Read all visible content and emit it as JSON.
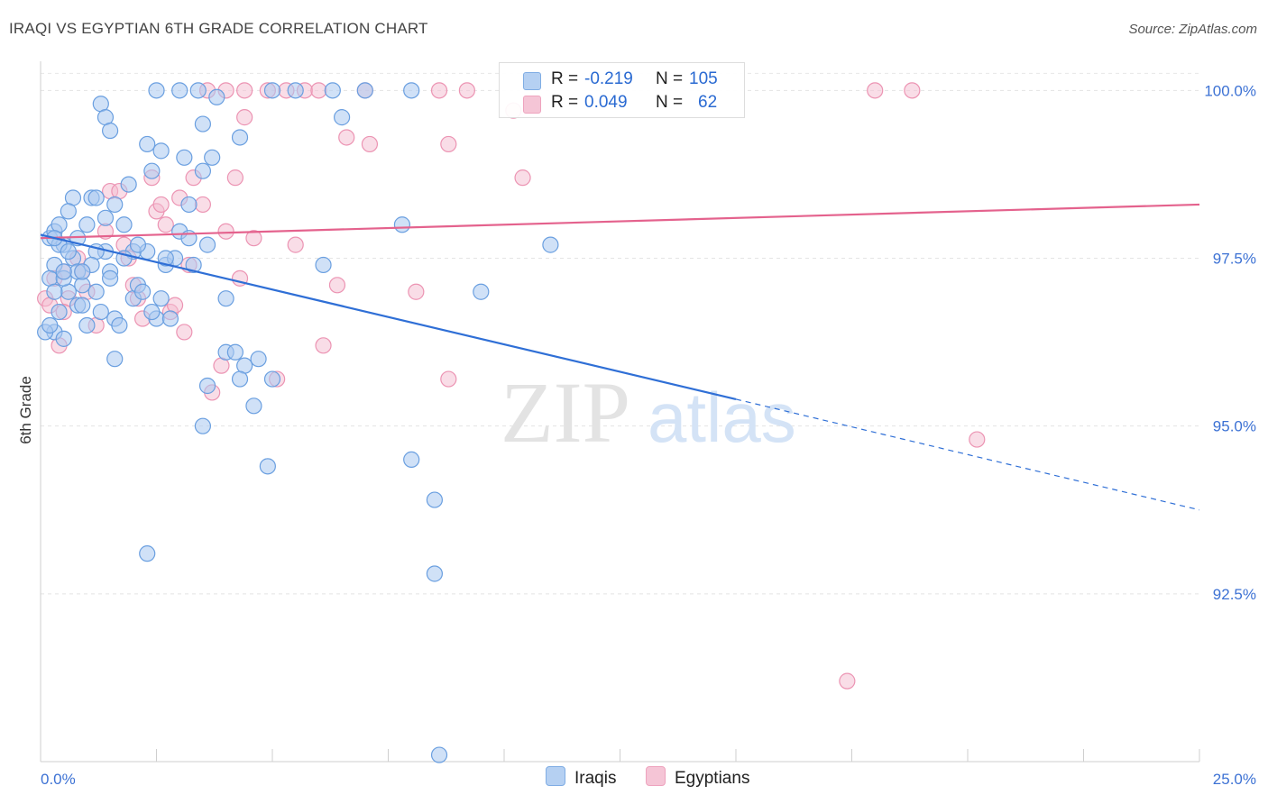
{
  "title": "IRAQI VS EGYPTIAN 6TH GRADE CORRELATION CHART",
  "source": "Source: ZipAtlas.com",
  "watermark": {
    "zip": "ZIP",
    "atlas": "atlas"
  },
  "colors": {
    "iraqi_fill": "#a9c8f0",
    "iraqi_stroke": "#6a9fe0",
    "iraqi_line": "#2f6fd6",
    "egypt_fill": "#f4bcd0",
    "egypt_stroke": "#ec94b3",
    "egypt_line": "#e4628d",
    "axis_text": "#3d72d4"
  },
  "legend": {
    "iraqi": {
      "r_label": "R =",
      "r_value": "-0.219",
      "n_label": "N =",
      "n_value": "105"
    },
    "egyptian": {
      "r_label": "R =",
      "r_value": "0.049",
      "n_label": "N =",
      "n_value": "62"
    }
  },
  "bottom_legend": {
    "iraqi": "Iraqis",
    "egyptian": "Egyptians"
  },
  "chart_data": {
    "type": "scatter",
    "title": "IRAQI VS EGYPTIAN 6TH GRADE CORRELATION CHART",
    "xlabel": "",
    "ylabel": "6th Grade",
    "xlim": [
      0,
      25
    ],
    "ylim": [
      90.0,
      100.3
    ],
    "x_tick_labels": [
      "0.0%",
      "25.0%"
    ],
    "y_ticks": [
      92.5,
      95.0,
      97.5,
      100.0
    ],
    "y_tick_labels": [
      "92.5%",
      "95.0%",
      "97.5%",
      "100.0%"
    ],
    "grid": true,
    "series": [
      {
        "name": "Iraqis",
        "trend": {
          "x0": 0.0,
          "y0": 97.85,
          "x1": 15.0,
          "y1": 95.4,
          "dash_to_x": 25.0,
          "dash_to_y": 93.75
        },
        "points": [
          [
            0.2,
            97.8
          ],
          [
            0.3,
            97.9
          ],
          [
            0.4,
            98.0
          ],
          [
            0.5,
            97.7
          ],
          [
            0.3,
            97.4
          ],
          [
            0.2,
            97.2
          ],
          [
            0.6,
            97.0
          ],
          [
            0.4,
            96.7
          ],
          [
            0.3,
            96.4
          ],
          [
            0.5,
            97.2
          ],
          [
            0.7,
            97.5
          ],
          [
            0.8,
            97.3
          ],
          [
            0.9,
            97.1
          ],
          [
            1.0,
            98.0
          ],
          [
            1.1,
            98.4
          ],
          [
            1.2,
            98.4
          ],
          [
            0.7,
            98.4
          ],
          [
            0.6,
            98.2
          ],
          [
            0.8,
            96.8
          ],
          [
            1.0,
            96.5
          ],
          [
            1.3,
            96.7
          ],
          [
            1.4,
            97.6
          ],
          [
            1.5,
            97.3
          ],
          [
            1.6,
            96.6
          ],
          [
            1.7,
            96.5
          ],
          [
            2.0,
            96.9
          ],
          [
            2.1,
            97.1
          ],
          [
            2.2,
            97.0
          ],
          [
            2.5,
            96.6
          ],
          [
            2.6,
            96.9
          ],
          [
            2.7,
            97.4
          ],
          [
            2.3,
            97.6
          ],
          [
            2.0,
            97.6
          ],
          [
            1.8,
            98.0
          ],
          [
            1.6,
            98.3
          ],
          [
            1.4,
            98.1
          ],
          [
            1.2,
            97.6
          ],
          [
            1.9,
            98.6
          ],
          [
            2.4,
            98.8
          ],
          [
            2.3,
            99.2
          ],
          [
            2.6,
            99.1
          ],
          [
            3.1,
            99.0
          ],
          [
            3.5,
            98.8
          ],
          [
            3.7,
            99.0
          ],
          [
            3.5,
            99.5
          ],
          [
            3.8,
            99.9
          ],
          [
            2.5,
            100.0
          ],
          [
            3.0,
            100.0
          ],
          [
            3.4,
            100.0
          ],
          [
            4.3,
            99.3
          ],
          [
            5.0,
            100.0
          ],
          [
            5.5,
            100.0
          ],
          [
            6.3,
            100.0
          ],
          [
            6.5,
            99.6
          ],
          [
            7.0,
            100.0
          ],
          [
            8.0,
            100.0
          ],
          [
            7.8,
            98.0
          ],
          [
            3.2,
            98.3
          ],
          [
            3.0,
            97.9
          ],
          [
            3.2,
            97.8
          ],
          [
            2.8,
            96.6
          ],
          [
            3.3,
            97.4
          ],
          [
            4.0,
            96.1
          ],
          [
            4.4,
            95.9
          ],
          [
            4.7,
            96.0
          ],
          [
            4.3,
            95.7
          ],
          [
            5.0,
            95.7
          ],
          [
            4.6,
            95.3
          ],
          [
            3.5,
            95.0
          ],
          [
            3.6,
            95.6
          ],
          [
            4.0,
            96.9
          ],
          [
            6.1,
            97.4
          ],
          [
            8.0,
            94.5
          ],
          [
            8.5,
            93.9
          ],
          [
            4.9,
            94.4
          ],
          [
            9.5,
            97.0
          ],
          [
            11.0,
            97.7
          ],
          [
            2.3,
            93.1
          ],
          [
            8.5,
            92.8
          ],
          [
            8.6,
            90.1
          ],
          [
            1.3,
            99.8
          ],
          [
            1.4,
            99.6
          ],
          [
            1.5,
            99.4
          ],
          [
            0.4,
            97.7
          ],
          [
            0.5,
            96.3
          ],
          [
            0.5,
            97.3
          ],
          [
            0.8,
            97.8
          ],
          [
            1.1,
            97.4
          ],
          [
            0.3,
            97.8
          ],
          [
            0.9,
            96.8
          ],
          [
            1.2,
            97.0
          ],
          [
            1.8,
            97.5
          ],
          [
            2.1,
            97.7
          ],
          [
            2.9,
            97.5
          ],
          [
            0.1,
            96.4
          ],
          [
            0.2,
            96.5
          ],
          [
            0.6,
            97.6
          ],
          [
            0.9,
            97.3
          ],
          [
            1.5,
            97.2
          ],
          [
            1.6,
            96.0
          ],
          [
            2.4,
            96.7
          ],
          [
            2.7,
            97.5
          ],
          [
            3.6,
            97.7
          ],
          [
            4.2,
            96.1
          ],
          [
            0.3,
            97.0
          ]
        ]
      },
      {
        "name": "Egyptians",
        "trend": {
          "x0": 0.0,
          "y0": 97.8,
          "x1": 25.0,
          "y1": 98.3
        },
        "points": [
          [
            0.1,
            96.9
          ],
          [
            0.2,
            96.8
          ],
          [
            0.3,
            97.2
          ],
          [
            0.4,
            96.2
          ],
          [
            0.5,
            97.3
          ],
          [
            0.6,
            96.9
          ],
          [
            0.8,
            97.5
          ],
          [
            0.9,
            97.3
          ],
          [
            1.0,
            97.0
          ],
          [
            1.2,
            96.5
          ],
          [
            1.4,
            97.9
          ],
          [
            1.5,
            98.5
          ],
          [
            1.7,
            98.5
          ],
          [
            1.8,
            97.7
          ],
          [
            1.9,
            97.5
          ],
          [
            2.0,
            97.1
          ],
          [
            2.1,
            96.9
          ],
          [
            2.2,
            96.6
          ],
          [
            2.4,
            98.7
          ],
          [
            2.5,
            98.2
          ],
          [
            2.6,
            98.3
          ],
          [
            2.7,
            98.0
          ],
          [
            2.8,
            96.7
          ],
          [
            2.9,
            96.8
          ],
          [
            3.0,
            98.4
          ],
          [
            3.1,
            96.4
          ],
          [
            3.2,
            97.4
          ],
          [
            3.3,
            98.7
          ],
          [
            3.5,
            98.3
          ],
          [
            3.7,
            95.5
          ],
          [
            3.9,
            95.9
          ],
          [
            4.0,
            97.9
          ],
          [
            4.2,
            98.7
          ],
          [
            4.3,
            97.2
          ],
          [
            4.6,
            97.8
          ],
          [
            5.1,
            95.7
          ],
          [
            5.5,
            97.7
          ],
          [
            6.1,
            96.2
          ],
          [
            6.4,
            97.1
          ],
          [
            6.6,
            99.3
          ],
          [
            7.1,
            99.2
          ],
          [
            8.1,
            97.0
          ],
          [
            8.8,
            95.7
          ],
          [
            8.8,
            99.2
          ],
          [
            10.2,
            99.7
          ],
          [
            10.4,
            98.7
          ],
          [
            18.0,
            100.0
          ],
          [
            18.8,
            100.0
          ],
          [
            20.2,
            94.8
          ],
          [
            17.4,
            91.2
          ],
          [
            3.6,
            100.0
          ],
          [
            4.0,
            100.0
          ],
          [
            4.4,
            100.0
          ],
          [
            4.9,
            100.0
          ],
          [
            5.3,
            100.0
          ],
          [
            5.7,
            100.0
          ],
          [
            6.0,
            100.0
          ],
          [
            7.0,
            100.0
          ],
          [
            8.6,
            100.0
          ],
          [
            9.2,
            100.0
          ],
          [
            4.4,
            99.6
          ],
          [
            0.5,
            96.7
          ]
        ]
      }
    ]
  }
}
